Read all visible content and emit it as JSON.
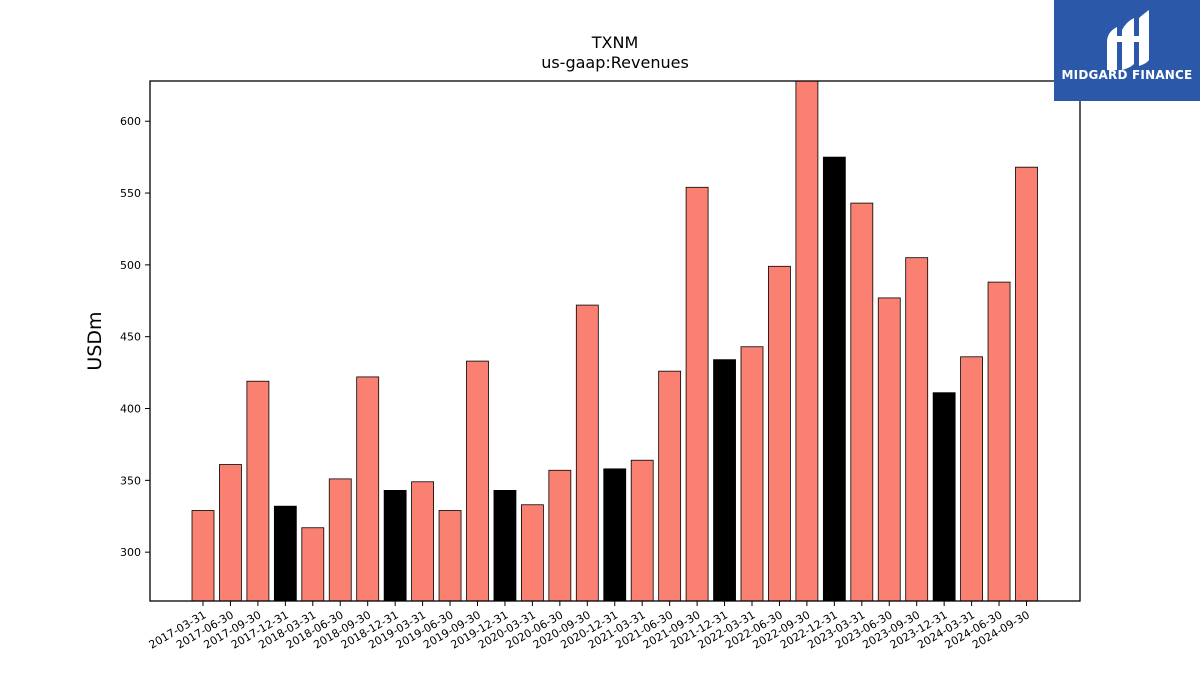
{
  "brand": {
    "name": "MIDGARD FINANCE",
    "color": "#2b58a8"
  },
  "chart_data": {
    "type": "bar",
    "title": "TXNM",
    "subtitle": "us-gaap:Revenues",
    "xlabel": "",
    "ylabel": "USDm",
    "ylim": [
      266,
      628
    ],
    "yticks": [
      300,
      350,
      400,
      450,
      500,
      550,
      600
    ],
    "grid": false,
    "legend": "none",
    "colors": {
      "quarter": "#fa8072",
      "year_end": "#000000",
      "edge": "#000000"
    },
    "categories": [
      "2017-03-31",
      "2017-06-30",
      "2017-09-30",
      "2017-12-31",
      "2018-03-31",
      "2018-06-30",
      "2018-09-30",
      "2018-12-31",
      "2019-03-31",
      "2019-06-30",
      "2019-09-30",
      "2019-12-31",
      "2020-03-31",
      "2020-06-30",
      "2020-09-30",
      "2020-12-31",
      "2021-03-31",
      "2021-06-30",
      "2021-09-30",
      "2021-12-31",
      "2022-03-31",
      "2022-06-30",
      "2022-09-30",
      "2022-12-31",
      "2023-03-31",
      "2023-06-30",
      "2023-09-30",
      "2023-12-31",
      "2024-03-31",
      "2024-06-30",
      "2024-09-30"
    ],
    "values": [
      329,
      361,
      419,
      332,
      317,
      351,
      422,
      343,
      349,
      329,
      433,
      343,
      333,
      357,
      472,
      358,
      364,
      426,
      554,
      434,
      443,
      499,
      630,
      575,
      543,
      477,
      505,
      411,
      436,
      488,
      568
    ],
    "year_end": [
      false,
      false,
      false,
      true,
      false,
      false,
      false,
      true,
      false,
      false,
      false,
      true,
      false,
      false,
      false,
      true,
      false,
      false,
      false,
      true,
      false,
      false,
      false,
      true,
      false,
      false,
      false,
      true,
      false,
      false,
      false
    ]
  }
}
